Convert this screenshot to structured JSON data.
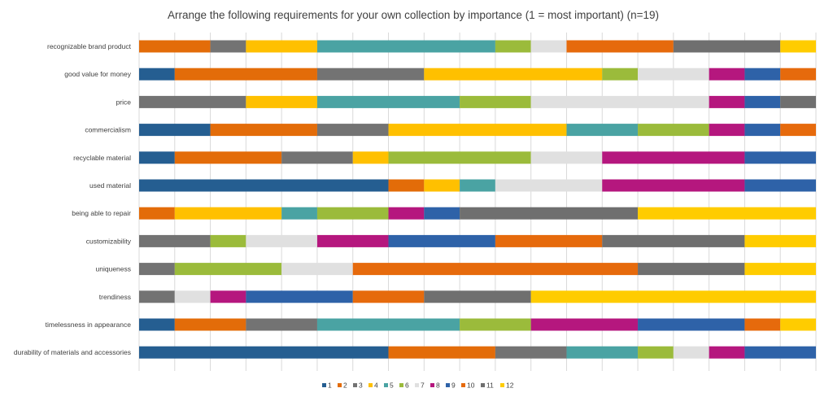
{
  "chart_data": {
    "type": "bar",
    "orientation": "horizontal",
    "stacked": true,
    "title": "Arrange the following requirements for your own collection by importance (1 = most important) (n=19)",
    "xlim": [
      0,
      19
    ],
    "grid": true,
    "legend_position": "bottom",
    "categories": [
      "recognizable brand product",
      "good value for money",
      "price",
      "commercialism",
      "recyclable material",
      "used material",
      "being able to repair",
      "customizability",
      "uniqueness",
      "trendiness",
      "timelessness in appearance",
      "durability of materials and accessories"
    ],
    "series": [
      {
        "name": "1",
        "color": "#255E91",
        "values": [
          0,
          1,
          0,
          2,
          1,
          7,
          0,
          0,
          0,
          0,
          1,
          7
        ]
      },
      {
        "name": "2",
        "color": "#E36C09",
        "values": [
          2,
          4,
          0,
          3,
          3,
          1,
          1,
          0,
          0,
          0,
          2,
          3
        ]
      },
      {
        "name": "3",
        "color": "#737373",
        "values": [
          1,
          3,
          3,
          2,
          2,
          0,
          0,
          2,
          1,
          1,
          2,
          2
        ]
      },
      {
        "name": "4",
        "color": "#FFC000",
        "values": [
          2,
          5,
          2,
          5,
          1,
          1,
          3,
          0,
          0,
          0,
          0,
          0
        ]
      },
      {
        "name": "5",
        "color": "#4AA3A3",
        "values": [
          5,
          0,
          4,
          2,
          0,
          1,
          1,
          0,
          0,
          0,
          4,
          2
        ]
      },
      {
        "name": "6",
        "color": "#9BBB3B",
        "values": [
          1,
          1,
          2,
          2,
          4,
          0,
          2,
          1,
          3,
          0,
          2,
          1
        ]
      },
      {
        "name": "7",
        "color": "#E0E0E0",
        "values": [
          1,
          2,
          5,
          0,
          2,
          3,
          0,
          2,
          2,
          1,
          0,
          1
        ]
      },
      {
        "name": "8",
        "color": "#B5177E",
        "values": [
          0,
          1,
          1,
          1,
          4,
          4,
          1,
          2,
          0,
          1,
          3,
          1
        ]
      },
      {
        "name": "9",
        "color": "#2E62A8",
        "values": [
          0,
          1,
          1,
          1,
          2,
          2,
          1,
          3,
          0,
          3,
          3,
          2
        ]
      },
      {
        "name": "10",
        "color": "#E66A0C",
        "values": [
          3,
          1,
          0,
          1,
          0,
          0,
          0,
          3,
          8,
          2,
          1,
          0
        ]
      },
      {
        "name": "11",
        "color": "#6F6F6F",
        "values": [
          3,
          0,
          1,
          0,
          0,
          0,
          5,
          4,
          3,
          3,
          0,
          0
        ]
      },
      {
        "name": "12",
        "color": "#FFCC00",
        "values": [
          1,
          0,
          0,
          0,
          0,
          0,
          5,
          2,
          2,
          8,
          1,
          0
        ]
      }
    ]
  }
}
